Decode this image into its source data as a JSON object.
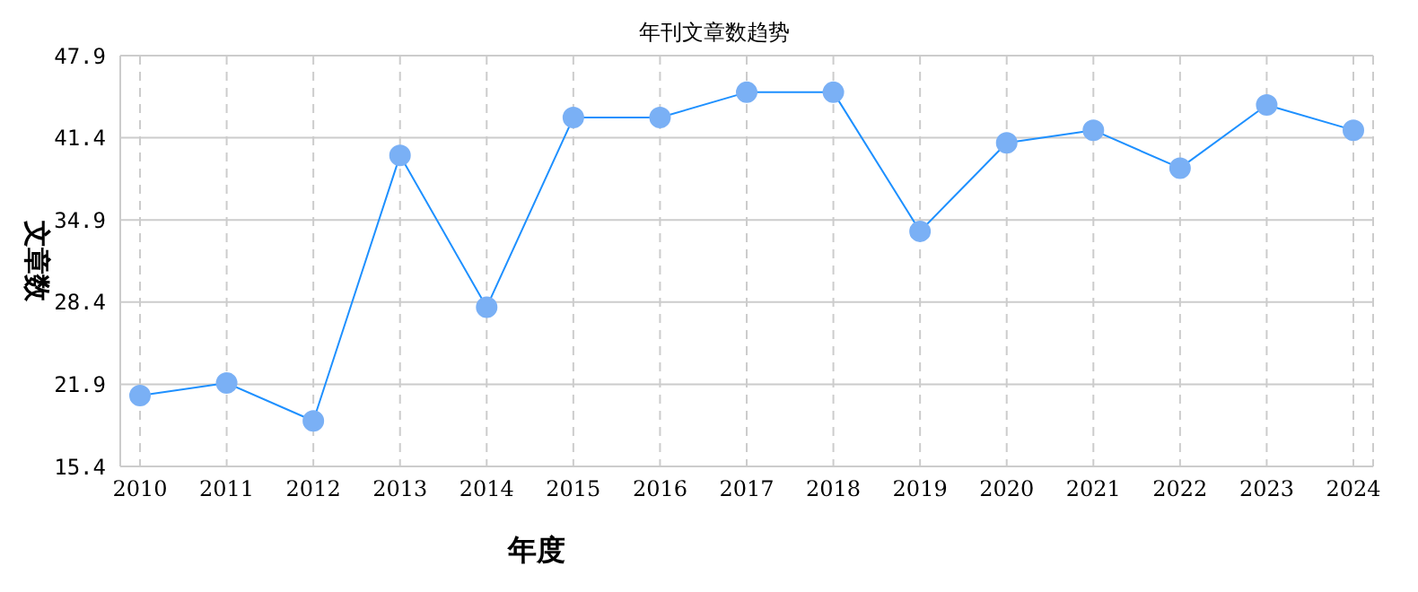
{
  "chart_data": {
    "type": "line",
    "title": "年刊文章数趋势",
    "xlabel": "年度",
    "ylabel": "文章数",
    "categories": [
      "2010",
      "2011",
      "2012",
      "2013",
      "2014",
      "2015",
      "2016",
      "2017",
      "2018",
      "2019",
      "2020",
      "2021",
      "2022",
      "2023",
      "2024"
    ],
    "series": [
      {
        "color": "#1e90ff",
        "values": [
          21,
          22,
          19,
          40,
          28,
          43,
          43,
          45,
          45,
          34,
          41,
          42,
          39,
          44,
          42
        ]
      }
    ],
    "ylim": [
      15.4,
      47.9
    ],
    "yticks": [
      15.4,
      21.9,
      28.4,
      34.9,
      41.4,
      47.9
    ],
    "grid": true,
    "marker": "circle",
    "legend": false
  }
}
